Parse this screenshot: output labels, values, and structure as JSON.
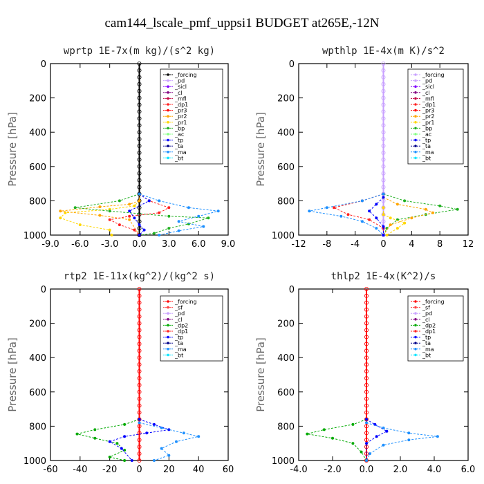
{
  "figure_title": "cam144_lscale_pmf_uppsi1  BUDGET at265E,-12N",
  "colors": {
    "forcing": "#000000",
    "forcing_alt": "#ff0000",
    "pd": "#c8a0ff",
    "sicl": "#8000ff",
    "cl": "#800080",
    "mfl": "#c00040",
    "dp1": "#ff2020",
    "dp2": "#00aa00",
    "pr3": "#ff0000",
    "pr2": "#ffa500",
    "pr1": "#ffd700",
    "bp": "#20b020",
    "ac": "#80ff80",
    "tp": "#0000ff",
    "ta": "#00008b",
    "ma": "#1e90ff",
    "bt": "#00e5ff",
    "sf": "#ff4040"
  },
  "chart_data": [
    {
      "type": "line",
      "title": "wprtp   1E-7x(m kg)/(s^2 kg)",
      "ylabel": "Pressure [hPa]",
      "xlim": [
        -9,
        9
      ],
      "ylim": [
        1000,
        0
      ],
      "xticks": [
        -9,
        -6,
        -3,
        0,
        3,
        6,
        9
      ],
      "xtick_labels": [
        "-9.0",
        "-6.0",
        "-3.0",
        "0.0",
        "3.0",
        "6.0",
        "9.0"
      ],
      "yticks": [
        0,
        200,
        400,
        600,
        800,
        1000
      ],
      "ytick_labels": [
        "0",
        "200",
        "400",
        "600",
        "800",
        "1000"
      ],
      "legend": [
        "_forcing",
        "_pd",
        "_sicl",
        "_cl",
        "_mfl",
        "_dp1",
        "_pr3",
        "_pr2",
        "_pr1",
        "_bp",
        "_ac",
        "_tp",
        "_ta",
        "_ma",
        "_bt"
      ],
      "series": [
        {
          "name": "_forcing",
          "color_key": "forcing",
          "x": [
            0,
            0,
            0,
            0,
            0,
            0,
            0,
            0,
            0,
            0,
            0,
            0,
            0,
            0,
            0,
            0,
            0,
            0,
            0,
            0,
            0,
            0,
            0,
            0,
            0,
            0
          ],
          "y": [
            0,
            40,
            80,
            120,
            160,
            200,
            240,
            280,
            320,
            360,
            400,
            440,
            480,
            520,
            560,
            600,
            640,
            680,
            720,
            760,
            800,
            840,
            880,
            920,
            960,
            1000
          ]
        },
        {
          "name": "_pr1",
          "color_key": "pr1",
          "x": [
            0,
            0,
            -0.5,
            -3,
            -7.5,
            -8,
            -6,
            -3,
            -2.8
          ],
          "y": [
            760,
            800,
            830,
            850,
            870,
            900,
            940,
            970,
            1000
          ]
        },
        {
          "name": "_pr2",
          "color_key": "pr2",
          "x": [
            0,
            0,
            -1,
            -4,
            -8,
            -4,
            -1,
            0
          ],
          "y": [
            760,
            800,
            820,
            835,
            860,
            885,
            910,
            1000
          ]
        },
        {
          "name": "_bp",
          "color_key": "bp",
          "x": [
            0,
            -2,
            -6.5,
            -3,
            3,
            7,
            5,
            3,
            1.5,
            0
          ],
          "y": [
            760,
            800,
            840,
            860,
            890,
            900,
            935,
            960,
            990,
            1000
          ]
        },
        {
          "name": "_dp1",
          "color_key": "dp1",
          "x": [
            0,
            1,
            3,
            2,
            -1,
            -3,
            -2,
            -0.5,
            0
          ],
          "y": [
            760,
            800,
            840,
            870,
            890,
            910,
            940,
            970,
            1000
          ]
        },
        {
          "name": "_tp",
          "color_key": "tp",
          "x": [
            0,
            1,
            -1,
            -0.5,
            0,
            0.5,
            0
          ],
          "y": [
            760,
            800,
            860,
            900,
            940,
            970,
            1000
          ]
        },
        {
          "name": "_ma",
          "color_key": "ma",
          "x": [
            0,
            2,
            5,
            8,
            6,
            4,
            6.5,
            4,
            2
          ],
          "y": [
            760,
            800,
            840,
            860,
            890,
            920,
            950,
            975,
            1000
          ]
        }
      ]
    },
    {
      "type": "line",
      "title": "wpthlp   1E-4x(m K)/s^2",
      "ylabel": "Pressure [hPa]",
      "xlim": [
        -12,
        12
      ],
      "ylim": [
        1000,
        0
      ],
      "xticks": [
        -12,
        -8,
        -4,
        0,
        4,
        8,
        12
      ],
      "xtick_labels": [
        "-12",
        "-8",
        "-4",
        "0",
        "4",
        "8",
        "12"
      ],
      "yticks": [
        0,
        200,
        400,
        600,
        800,
        1000
      ],
      "ytick_labels": [
        "0",
        "200",
        "400",
        "600",
        "800",
        "1000"
      ],
      "legend": [
        "_forcing",
        "_pd",
        "_sicl",
        "_cl",
        "_mfl",
        "_dp1",
        "_pr3",
        "_pr2",
        "_pr1",
        "_bp",
        "_ac",
        "_tp",
        "_ta",
        "_ma",
        "_bt"
      ],
      "series": [
        {
          "name": "_forcing",
          "color_key": "pd",
          "x": [
            0,
            0,
            0,
            0,
            0,
            0,
            0,
            0,
            0,
            0,
            0,
            0,
            0,
            0,
            0,
            0,
            0,
            0,
            0,
            0,
            0,
            0,
            0,
            0,
            0,
            0
          ],
          "y": [
            0,
            40,
            80,
            120,
            160,
            200,
            240,
            280,
            320,
            360,
            400,
            440,
            480,
            520,
            560,
            600,
            640,
            680,
            720,
            760,
            800,
            840,
            880,
            920,
            960,
            1000
          ]
        },
        {
          "name": "_bp",
          "color_key": "bp",
          "x": [
            0,
            3,
            8,
            10.5,
            6,
            2,
            0.5,
            0
          ],
          "y": [
            760,
            800,
            830,
            850,
            880,
            910,
            960,
            1000
          ]
        },
        {
          "name": "_pr2",
          "color_key": "pr2",
          "x": [
            0,
            2,
            6,
            7,
            4,
            1,
            0
          ],
          "y": [
            780,
            820,
            850,
            870,
            900,
            940,
            1000
          ]
        },
        {
          "name": "_dp1",
          "color_key": "dp1",
          "x": [
            0,
            -3,
            -7,
            -5,
            -2,
            0,
            0
          ],
          "y": [
            760,
            800,
            840,
            880,
            910,
            960,
            1000
          ]
        },
        {
          "name": "_ma",
          "color_key": "ma",
          "x": [
            0,
            -3,
            -8,
            -10.5,
            -6,
            -3,
            -1,
            0
          ],
          "y": [
            760,
            800,
            840,
            860,
            890,
            920,
            960,
            1000
          ]
        },
        {
          "name": "_tp",
          "color_key": "tp",
          "x": [
            0,
            -1,
            -2,
            -1,
            0,
            0
          ],
          "y": [
            780,
            820,
            860,
            900,
            950,
            1000
          ]
        },
        {
          "name": "_pr1",
          "color_key": "pr1",
          "x": [
            0,
            0,
            1,
            3,
            2,
            0.5
          ],
          "y": [
            840,
            880,
            900,
            930,
            960,
            1000
          ]
        }
      ]
    },
    {
      "type": "line",
      "title": "rtp2   1E-11x(kg^2)/(kg^2 s)",
      "ylabel": "Pressure [hPa]",
      "xlim": [
        -60,
        60
      ],
      "ylim": [
        1000,
        0
      ],
      "xticks": [
        -60,
        -40,
        -20,
        0,
        20,
        40,
        60
      ],
      "xtick_labels": [
        "-60",
        "-40",
        "-20",
        "0",
        "20",
        "40",
        "60"
      ],
      "yticks": [
        0,
        200,
        400,
        600,
        800,
        1000
      ],
      "ytick_labels": [
        "0",
        "200",
        "400",
        "600",
        "800",
        "1000"
      ],
      "legend": [
        "_forcing",
        "_sf",
        "_pd",
        "_cl",
        "_dp2",
        "_dp1",
        "_tp",
        "_ta",
        "_ma",
        "_bt"
      ],
      "series": [
        {
          "name": "_forcing",
          "color_key": "forcing_alt",
          "x": [
            0,
            0,
            0,
            0,
            0,
            0,
            0,
            0,
            0,
            0,
            0,
            0,
            0,
            0,
            0,
            0,
            0,
            0,
            0,
            0,
            0,
            0,
            0,
            0,
            0,
            0
          ],
          "y": [
            0,
            40,
            80,
            120,
            160,
            200,
            240,
            280,
            320,
            360,
            400,
            440,
            480,
            520,
            560,
            600,
            640,
            680,
            720,
            760,
            800,
            840,
            880,
            920,
            960,
            1000
          ]
        },
        {
          "name": "_dp2",
          "color_key": "dp2",
          "x": [
            0,
            -10,
            -30,
            -42,
            -30,
            -15,
            -10,
            -20,
            -10
          ],
          "y": [
            760,
            790,
            820,
            845,
            870,
            900,
            940,
            980,
            1000
          ]
        },
        {
          "name": "_tp",
          "color_key": "tp",
          "x": [
            0,
            10,
            20,
            5,
            -10,
            -20,
            -12,
            -5
          ],
          "y": [
            760,
            790,
            820,
            840,
            860,
            890,
            930,
            1000
          ]
        },
        {
          "name": "_ma",
          "color_key": "ma",
          "x": [
            0,
            15,
            30,
            40,
            25,
            15,
            20,
            10
          ],
          "y": [
            780,
            810,
            840,
            860,
            890,
            930,
            970,
            1000
          ]
        }
      ]
    },
    {
      "type": "line",
      "title": "thlp2   1E-4x(K^2)/s",
      "ylabel": "Pressure [hPa]",
      "xlim": [
        -4,
        6
      ],
      "ylim": [
        1000,
        0
      ],
      "xticks": [
        -4,
        -2,
        0,
        2,
        4,
        6
      ],
      "xtick_labels": [
        "-4.0",
        "-2.0",
        "0.0",
        "2.0",
        "4.0",
        "6.0"
      ],
      "yticks": [
        0,
        200,
        400,
        600,
        800,
        1000
      ],
      "ytick_labels": [
        "0",
        "200",
        "400",
        "600",
        "800",
        "1000"
      ],
      "legend": [
        "_forcing",
        "_sf",
        "_pd",
        "_cl",
        "_dp2",
        "_dp1",
        "_tp",
        "_ta",
        "_ma",
        "_bt"
      ],
      "series": [
        {
          "name": "_forcing",
          "color_key": "forcing_alt",
          "x": [
            0,
            0,
            0,
            0,
            0,
            0,
            0,
            0,
            0,
            0,
            0,
            0,
            0,
            0,
            0,
            0,
            0,
            0,
            0,
            0,
            0,
            0,
            0,
            0,
            0,
            0
          ],
          "y": [
            0,
            40,
            80,
            120,
            160,
            200,
            240,
            280,
            320,
            360,
            400,
            440,
            480,
            520,
            560,
            600,
            640,
            680,
            720,
            760,
            800,
            840,
            880,
            920,
            960,
            1000
          ]
        },
        {
          "name": "_dp2",
          "color_key": "dp2",
          "x": [
            0,
            -0.8,
            -2.5,
            -3.5,
            -2,
            -0.8,
            -0.3,
            0
          ],
          "y": [
            760,
            790,
            820,
            845,
            870,
            900,
            950,
            1000
          ]
        },
        {
          "name": "_tp",
          "color_key": "tp",
          "x": [
            0,
            0.5,
            1.2,
            0.6,
            0,
            0
          ],
          "y": [
            760,
            790,
            830,
            860,
            900,
            1000
          ]
        },
        {
          "name": "_ma",
          "color_key": "ma",
          "x": [
            0,
            1,
            2.5,
            4.2,
            2.5,
            1,
            0.2,
            0
          ],
          "y": [
            780,
            810,
            840,
            860,
            880,
            910,
            960,
            1000
          ]
        }
      ]
    }
  ]
}
